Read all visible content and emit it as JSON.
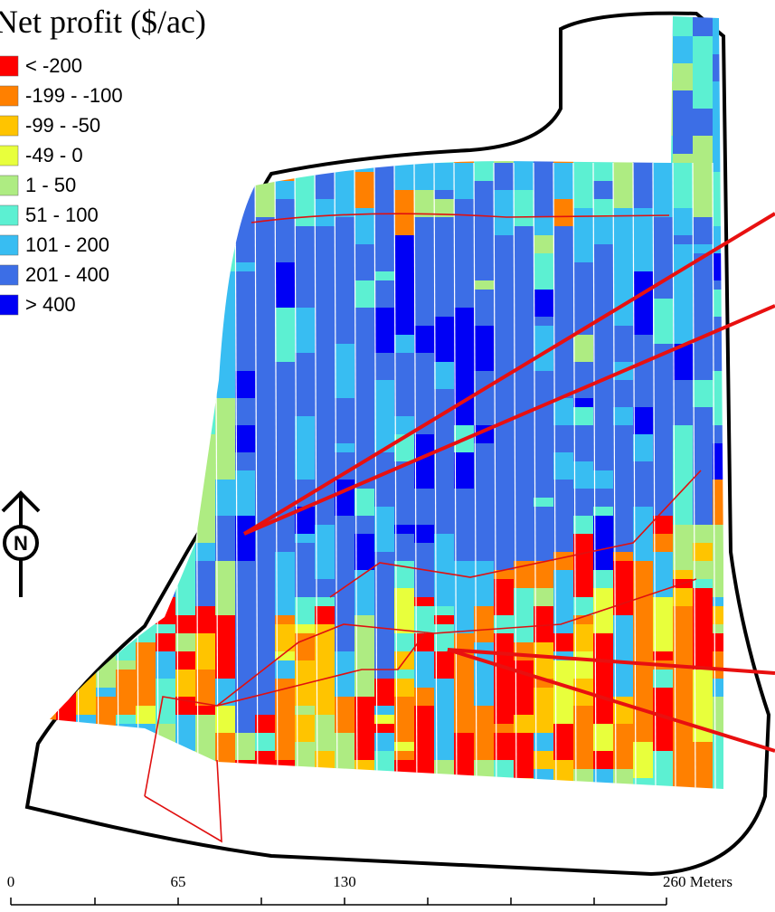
{
  "title": "Net profit ($/ac)",
  "legend": [
    {
      "label": "< -200",
      "color": "#ff0000"
    },
    {
      "label": "-199 - -100",
      "color": "#ff8000"
    },
    {
      "label": "-99 - -50",
      "color": "#ffc400"
    },
    {
      "label": "-49 - 0",
      "color": "#e8ff3c"
    },
    {
      "label": "1 - 50",
      "color": "#aeec82"
    },
    {
      "label": "51 - 100",
      "color": "#5cf0d2"
    },
    {
      "label": "101 - 200",
      "color": "#38bdf2"
    },
    {
      "label": "201 - 400",
      "color": "#3c6ee6"
    },
    {
      "label": "> 400",
      "color": "#0000f5"
    }
  ],
  "north_arrow": "N",
  "scale_bar": {
    "labels": [
      "0",
      "65",
      "130",
      "260 Meters"
    ]
  }
}
